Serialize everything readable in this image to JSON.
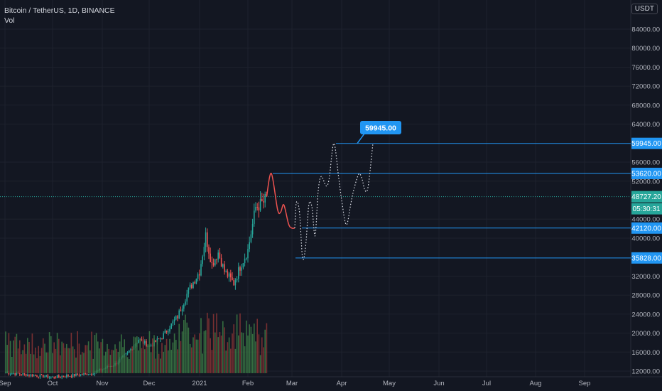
{
  "header": {
    "symbol": "Bitcoin / TetherUS, 1D, BINANCE",
    "study": "Vol",
    "currency": "USDT"
  },
  "colors": {
    "background": "#131722",
    "up": "#26a69a",
    "down": "#ef5350",
    "vol_up": "#3c7d45",
    "vol_down": "#8a3434",
    "hline": "#2962ff",
    "badge": "#2196f3",
    "last_price": "#26a69a",
    "projection_red": "#ef5350",
    "projection_white": "#e0e3eb"
  },
  "chart_data": {
    "type": "candlestick",
    "ylim": [
      12000,
      88000
    ],
    "y_ticks": [
      "84000.00",
      "80000.00",
      "76000.00",
      "72000.00",
      "68000.00",
      "64000.00",
      "56000.00",
      "52000.00",
      "44000.00",
      "40000.00",
      "32000.00",
      "28000.00",
      "24000.00",
      "20000.00",
      "16000.00",
      "12000.00"
    ],
    "x_ticks": [
      "Sep",
      "Oct",
      "Nov",
      "Dec",
      "2021",
      "Feb",
      "Mar",
      "Apr",
      "May",
      "Jun",
      "Jul",
      "Aug",
      "Sep"
    ],
    "horizontal_levels": [
      {
        "label": "59945.00",
        "value": 59945
      },
      {
        "label": "53620.00",
        "value": 53620
      },
      {
        "label": "42120.00",
        "value": 42120
      },
      {
        "label": "35828.00",
        "value": 35828
      }
    ],
    "last_price": {
      "label": "48727.20",
      "value": 48727.2,
      "countdown": "05:30:31"
    },
    "callout": {
      "label": "59945.00"
    },
    "ohlc_anchors": [
      {
        "t": 0,
        "close": 11700
      },
      {
        "t": 30,
        "close": 10700
      },
      {
        "t": 55,
        "close": 11500
      },
      {
        "t": 70,
        "close": 13500
      },
      {
        "t": 78,
        "close": 15700
      },
      {
        "t": 85,
        "close": 18700
      },
      {
        "t": 92,
        "close": 17200
      },
      {
        "t": 100,
        "close": 19200
      },
      {
        "t": 110,
        "close": 23500
      },
      {
        "t": 117,
        "close": 29000
      },
      {
        "t": 124,
        "close": 33000
      },
      {
        "t": 128,
        "close": 40500
      },
      {
        "t": 132,
        "close": 34500
      },
      {
        "t": 136,
        "close": 37000
      },
      {
        "t": 140,
        "close": 33000
      },
      {
        "t": 146,
        "close": 30500
      },
      {
        "t": 150,
        "close": 34000
      },
      {
        "t": 155,
        "close": 37500
      },
      {
        "t": 160,
        "close": 46500
      },
      {
        "t": 165,
        "close": 47500
      },
      {
        "t": 167,
        "close": 48727
      }
    ],
    "projection_red": [
      {
        "t": 167,
        "v": 48727
      },
      {
        "t": 170,
        "v": 53620
      },
      {
        "t": 174,
        "v": 46000
      },
      {
        "t": 176,
        "v": 45500
      },
      {
        "t": 178,
        "v": 47000
      },
      {
        "t": 181,
        "v": 43000
      },
      {
        "t": 183,
        "v": 42120
      },
      {
        "t": 185,
        "v": 42120
      }
    ],
    "projection_white": [
      {
        "t": 185,
        "v": 42120
      },
      {
        "t": 186,
        "v": 47500
      },
      {
        "t": 188,
        "v": 45500
      },
      {
        "t": 190,
        "v": 35828
      },
      {
        "t": 192,
        "v": 38500
      },
      {
        "t": 194,
        "v": 47000
      },
      {
        "t": 196,
        "v": 46500
      },
      {
        "t": 198,
        "v": 40500
      },
      {
        "t": 200,
        "v": 50000
      },
      {
        "t": 202,
        "v": 53000
      },
      {
        "t": 205,
        "v": 51000
      },
      {
        "t": 207,
        "v": 52500
      },
      {
        "t": 210,
        "v": 59945
      },
      {
        "t": 213,
        "v": 53000
      },
      {
        "t": 215,
        "v": 48000
      },
      {
        "t": 218,
        "v": 42800
      },
      {
        "t": 221,
        "v": 47500
      },
      {
        "t": 223,
        "v": 50500
      },
      {
        "t": 226,
        "v": 53500
      },
      {
        "t": 228,
        "v": 52500
      },
      {
        "t": 230,
        "v": 50000
      },
      {
        "t": 232,
        "v": 51000
      },
      {
        "t": 235,
        "v": 59945
      }
    ]
  }
}
